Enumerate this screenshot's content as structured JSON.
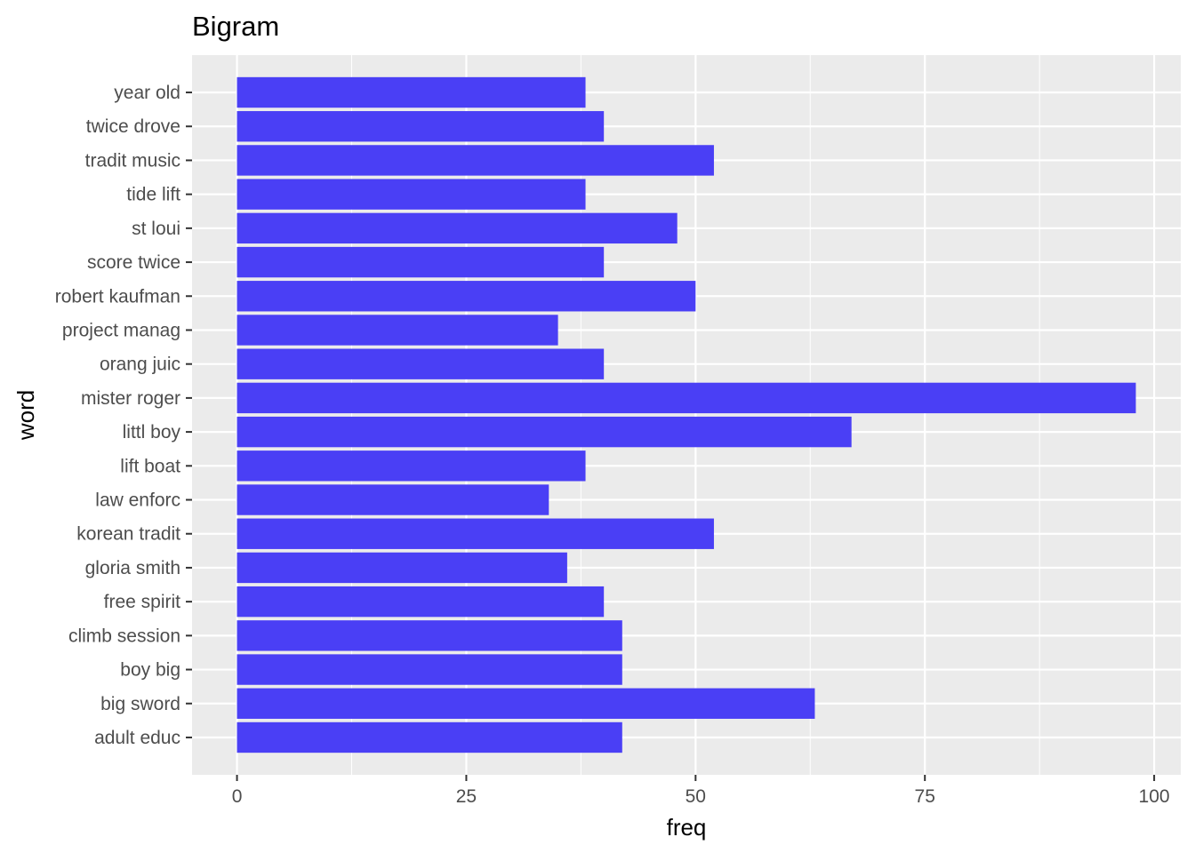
{
  "chart_data": {
    "type": "bar",
    "orientation": "horizontal",
    "title": "Bigram",
    "xlabel": "freq",
    "ylabel": "word",
    "categories": [
      "adult educ",
      "big sword",
      "boy big",
      "climb session",
      "free spirit",
      "gloria smith",
      "korean tradit",
      "law enforc",
      "lift boat",
      "littl boy",
      "mister roger",
      "orang juic",
      "project manag",
      "robert kaufman",
      "score twice",
      "st loui",
      "tide lift",
      "tradit music",
      "twice drove",
      "year old"
    ],
    "values": [
      42,
      63,
      42,
      42,
      40,
      36,
      52,
      34,
      38,
      67,
      98,
      40,
      35,
      50,
      40,
      48,
      38,
      52,
      40,
      38
    ],
    "xlim": [
      -4.9,
      102.9
    ],
    "xticks": [
      0,
      25,
      50,
      75,
      100
    ],
    "grid": true,
    "legend": "none",
    "colors": {
      "bar": "#4A3FF5",
      "panel_background": "#EBEBEB",
      "grid_major": "#FFFFFF",
      "tick_label": "#4D4D4D",
      "tick_mark": "#333333",
      "text": "#000000"
    }
  }
}
